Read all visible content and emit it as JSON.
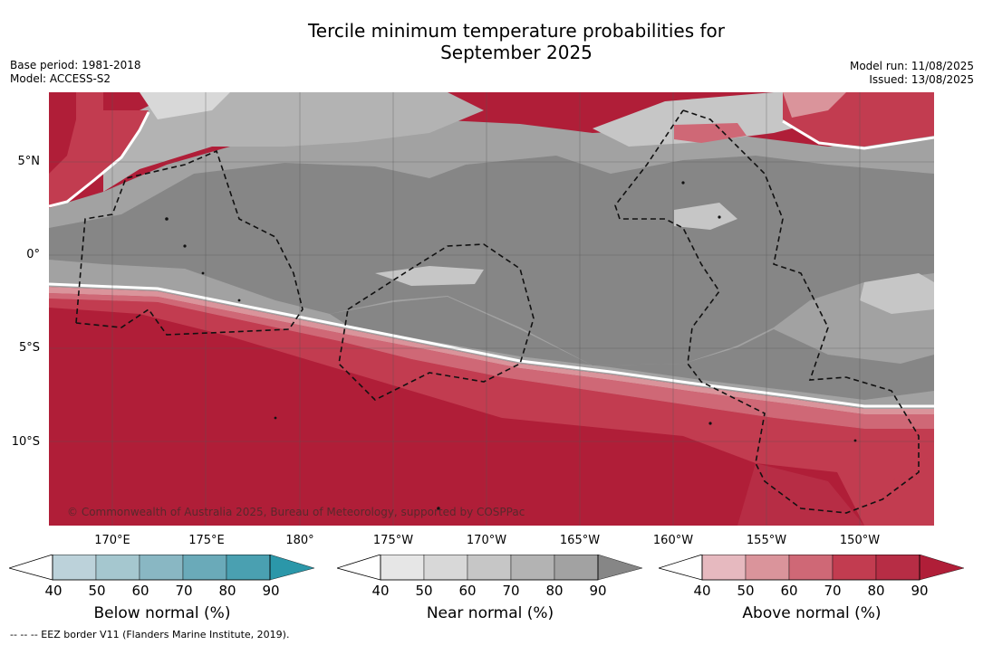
{
  "title": {
    "line1": "Tercile minimum temperature probabilities for",
    "line2": "September 2025"
  },
  "meta_left": {
    "base_period": "Base period: 1981-2018",
    "model": "Model: ACCESS-S2"
  },
  "meta_right": {
    "model_run": "Model run: 11/08/2025",
    "issued": "Issued: 13/08/2025"
  },
  "map": {
    "lat_labels": [
      "5°N",
      "0°",
      "5°S",
      "10°S"
    ],
    "lon_labels": [
      "170°E",
      "175°E",
      "180°",
      "175°W",
      "170°W",
      "165°W",
      "160°W",
      "155°W",
      "150°W"
    ],
    "copyright": "© Commonwealth of Australia 2025, Bureau of Meteorology, supported by COSPPac",
    "colors": {
      "red_strong": "#b01e38",
      "red_mid": "#c23c50",
      "red_light": "#cf6876",
      "red_pale": "#da949b",
      "grey_dark": "#868686",
      "grey_mid": "#a2a2a2",
      "grey_light": "#c6c6c6",
      "grey_pale": "#d8d8d8"
    }
  },
  "colorbars": [
    {
      "name": "below",
      "title": "Below normal (%)",
      "ticks": [
        "40",
        "50",
        "60",
        "70",
        "80",
        "90"
      ],
      "colors": [
        "#bcd2da",
        "#a5c7cf",
        "#89b7c3",
        "#6aaab9",
        "#4aa0b1",
        "#2b97a9"
      ]
    },
    {
      "name": "near",
      "title": "Near normal (%)",
      "ticks": [
        "40",
        "50",
        "60",
        "70",
        "80",
        "90"
      ],
      "colors": [
        "#e6e6e6",
        "#d8d8d8",
        "#c6c6c6",
        "#b3b3b3",
        "#a2a2a2",
        "#868686"
      ]
    },
    {
      "name": "above",
      "title": "Above normal (%)",
      "ticks": [
        "40",
        "50",
        "60",
        "70",
        "80",
        "90"
      ],
      "colors": [
        "#e6b9bf",
        "#da949b",
        "#cf6876",
        "#c23c50",
        "#b72d45",
        "#b01e38"
      ]
    }
  ],
  "footnote": "--  --  -- EEZ border V11 (Flanders Marine Institute, 2019)."
}
